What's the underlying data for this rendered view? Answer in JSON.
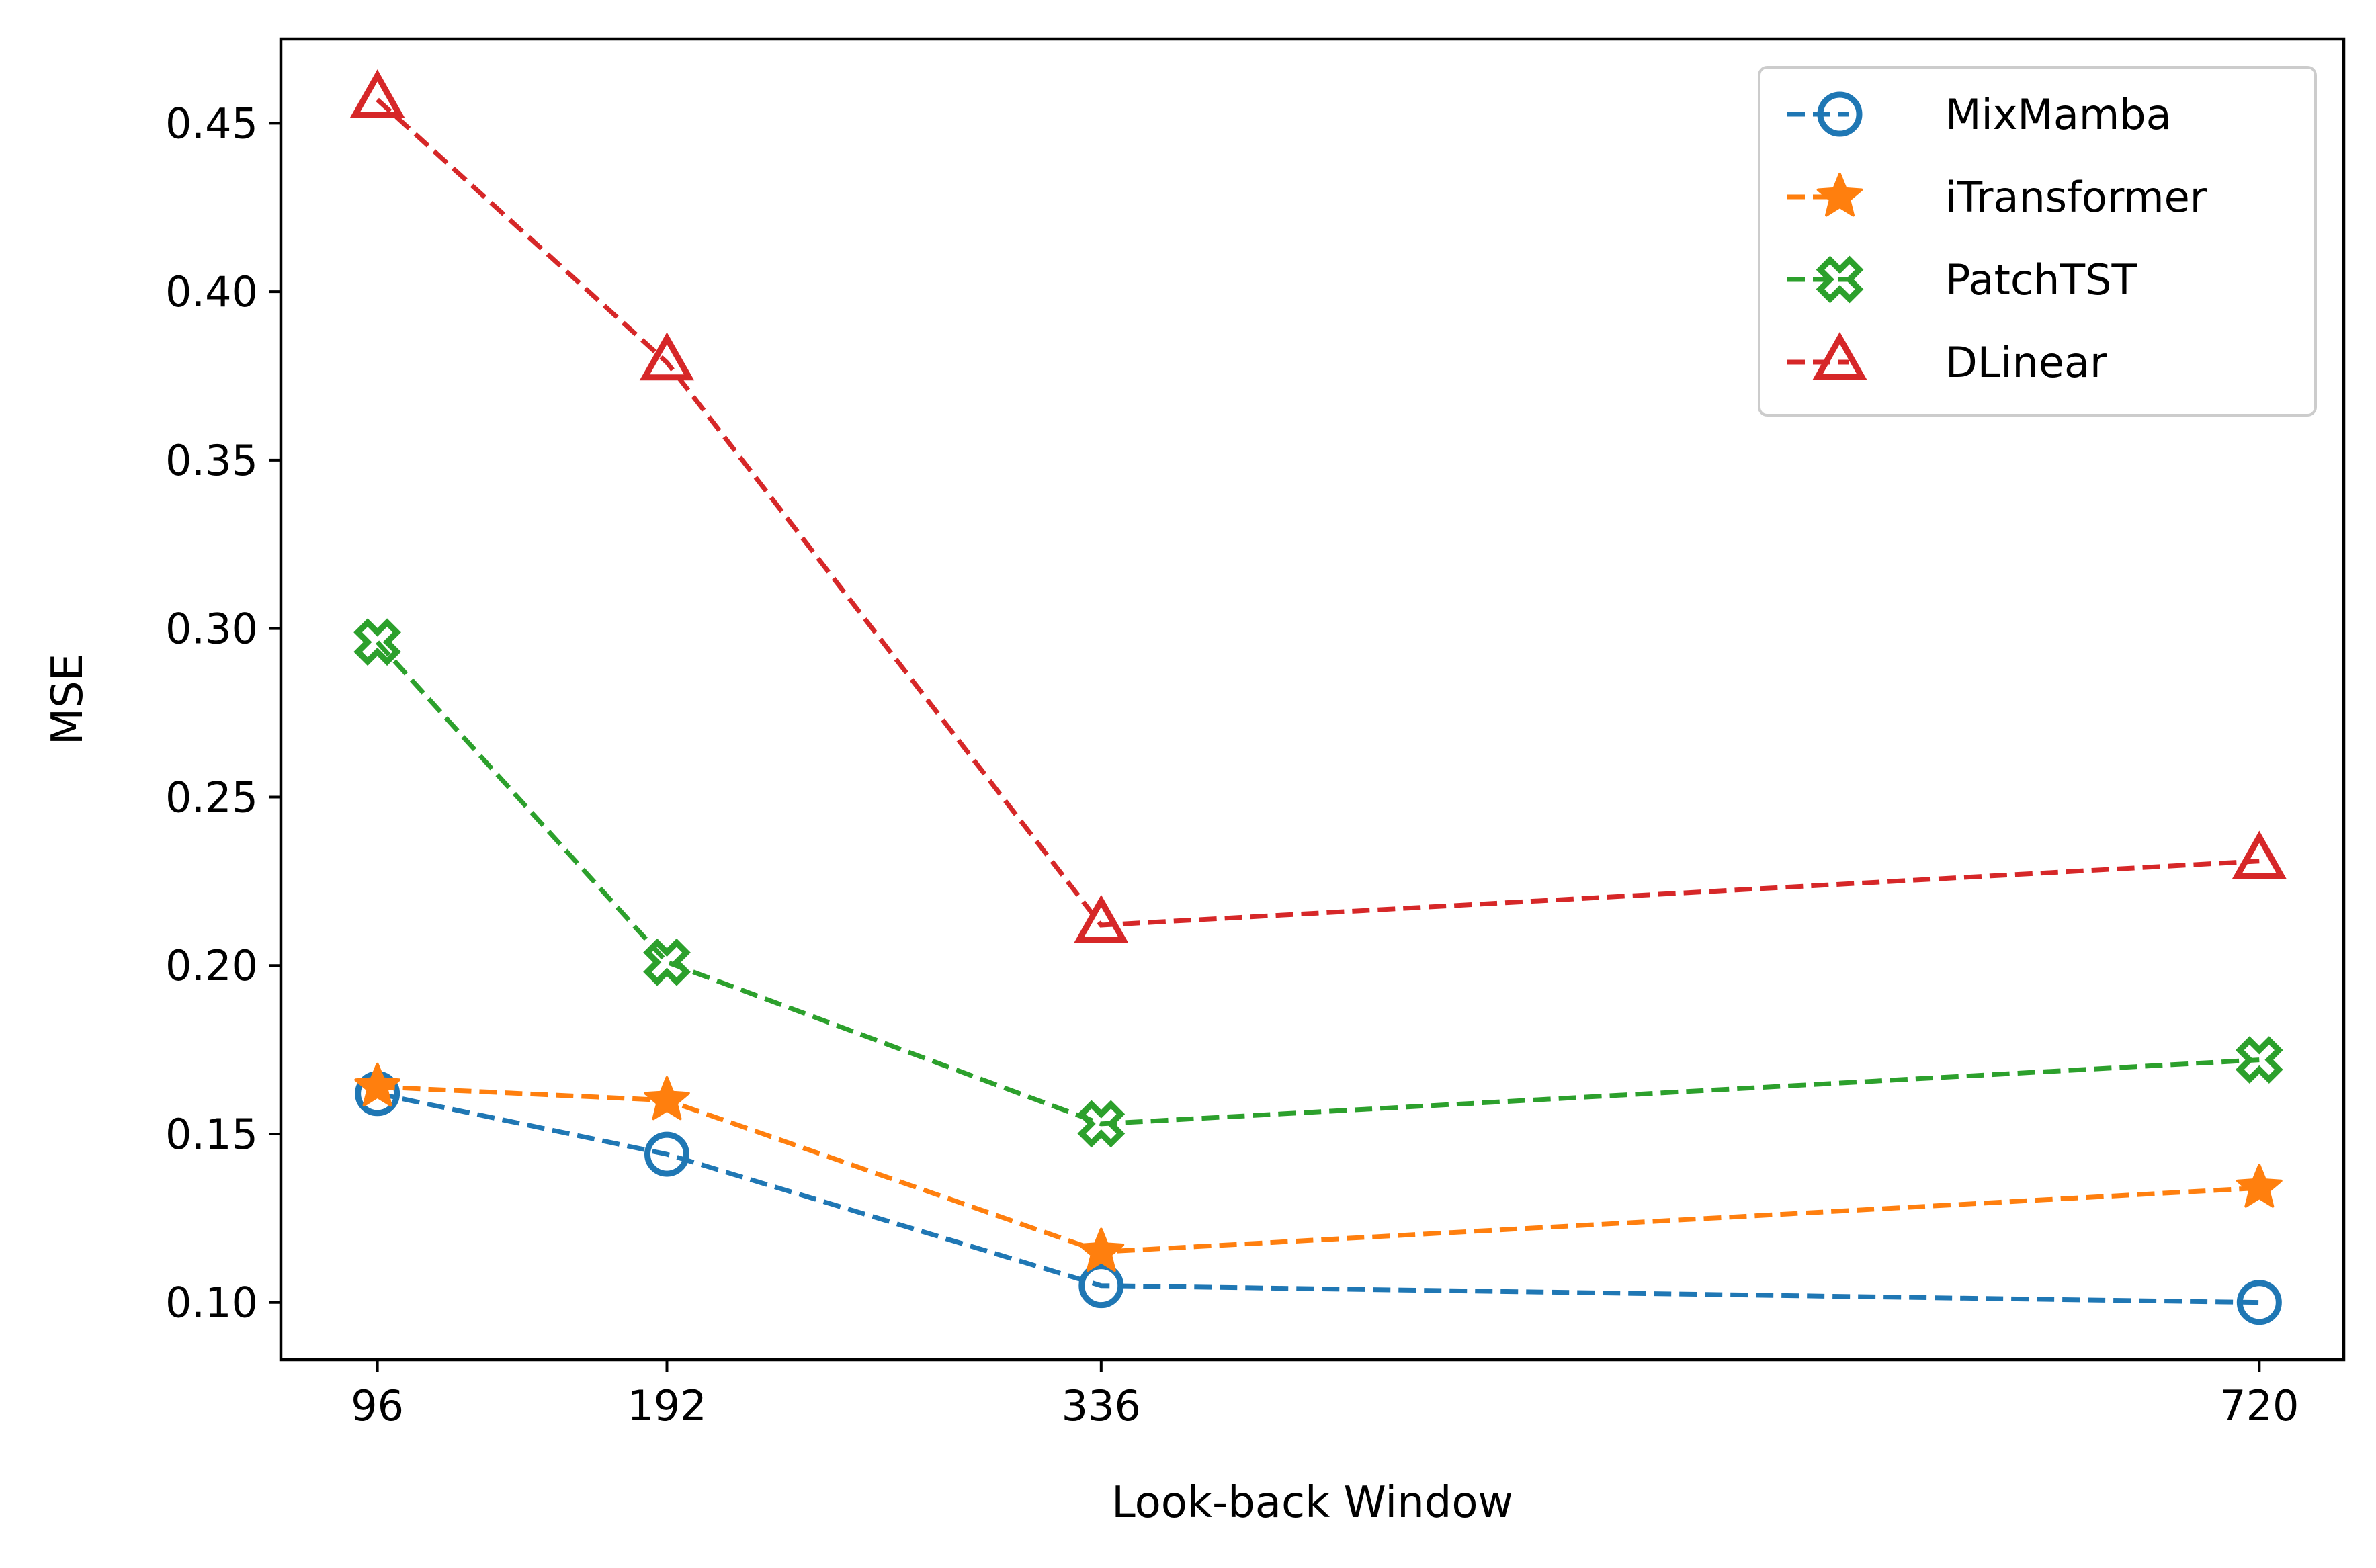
{
  "chart_data": {
    "type": "line",
    "title": "",
    "xlabel": "Look-back Window",
    "ylabel": "MSE",
    "x": [
      96,
      192,
      336,
      720
    ],
    "xticks": [
      "96",
      "192",
      "336",
      "720"
    ],
    "yticks": [
      "0.10",
      "0.15",
      "0.20",
      "0.25",
      "0.30",
      "0.35",
      "0.40",
      "0.45"
    ],
    "ylim": [
      0.083,
      0.475
    ],
    "xlim": [
      64,
      748
    ],
    "grid": false,
    "legend_position": "top-right",
    "series": [
      {
        "name": "MixMamba",
        "values": [
          0.162,
          0.144,
          0.105,
          0.1
        ],
        "color": "#1f77b4",
        "marker": "circle"
      },
      {
        "name": "iTransformer",
        "values": [
          0.164,
          0.16,
          0.115,
          0.134
        ],
        "color": "#ff7f0e",
        "marker": "star"
      },
      {
        "name": "PatchTST",
        "values": [
          0.296,
          0.201,
          0.153,
          0.172
        ],
        "color": "#2ca02c",
        "marker": "x-filled"
      },
      {
        "name": "DLinear",
        "values": [
          0.457,
          0.379,
          0.212,
          0.231
        ],
        "color": "#d62728",
        "marker": "triangle"
      }
    ]
  }
}
